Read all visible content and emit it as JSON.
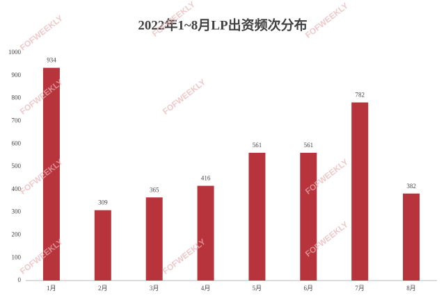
{
  "chart_data": {
    "type": "bar",
    "title": "2022年1~8月LP出资频次分布",
    "categories": [
      "1月",
      "2月",
      "3月",
      "4月",
      "5月",
      "6月",
      "7月",
      "8月"
    ],
    "values": [
      934,
      309,
      365,
      416,
      561,
      561,
      782,
      382
    ],
    "color": "#b8343c",
    "ylim": [
      0,
      1000
    ],
    "yticks": [
      0,
      100,
      200,
      300,
      400,
      500,
      600,
      700,
      800,
      900,
      1000
    ],
    "grid": false,
    "show_value_labels": true,
    "watermark": "FOFWEEKLY"
  }
}
